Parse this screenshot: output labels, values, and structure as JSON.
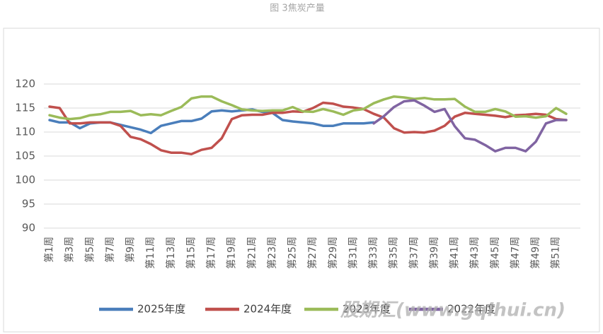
{
  "chart_data": {
    "type": "line",
    "title": "图 3焦炭产量",
    "watermark": "股期汇(www.gqihui.cn)",
    "categories": [
      "第1周",
      null,
      "第3周",
      null,
      "第5周",
      null,
      "第7周",
      null,
      "第9周",
      null,
      "第11周",
      null,
      "第13周",
      null,
      "第15周",
      null,
      "第17周",
      null,
      "第19周",
      null,
      "第21周",
      null,
      "第23周",
      null,
      "第25周",
      null,
      "第27周",
      null,
      "第29周",
      null,
      "第31周",
      null,
      "第33周",
      null,
      "第35周",
      null,
      "第37周",
      null,
      "第39周",
      null,
      "第41周",
      null,
      "第43周",
      null,
      "第45周",
      null,
      "第47周",
      null,
      "第49周",
      null,
      "第51周",
      null
    ],
    "ylim": [
      90,
      120
    ],
    "yticks": [
      90,
      95,
      100,
      105,
      110,
      115,
      120
    ],
    "grid": true,
    "series": [
      {
        "name": "2025年度",
        "color": "#4a7ebb",
        "values": [
          112.5,
          112.0,
          112.0,
          110.8,
          111.8,
          112.0,
          112.0,
          111.5,
          111.0,
          110.5,
          109.8,
          111.3,
          111.8,
          112.3,
          112.3,
          112.8,
          114.3,
          114.5,
          114.3,
          114.5,
          114.7,
          114.2,
          114.0,
          112.5,
          112.2,
          112.0,
          111.8,
          111.3,
          111.3,
          111.8,
          111.8,
          111.8,
          112.0,
          null,
          null,
          null,
          null,
          null,
          null,
          null,
          null,
          null,
          null,
          null,
          null,
          null,
          null,
          null,
          null,
          null,
          null,
          null
        ]
      },
      {
        "name": "2024年度",
        "color": "#c0504d",
        "values": [
          115.3,
          115.0,
          111.8,
          111.8,
          112.0,
          112.0,
          112.0,
          111.3,
          109.0,
          108.5,
          107.5,
          106.2,
          105.7,
          105.7,
          105.4,
          106.3,
          106.7,
          108.7,
          112.7,
          113.5,
          113.6,
          113.6,
          114.0,
          114.0,
          114.3,
          114.2,
          115.0,
          116.1,
          115.9,
          115.3,
          115.1,
          114.8,
          113.8,
          113.0,
          110.8,
          109.9,
          110.0,
          109.9,
          110.3,
          111.3,
          113.2,
          114.0,
          113.8,
          113.6,
          113.4,
          113.1,
          113.5,
          113.6,
          113.8,
          113.6,
          112.7,
          112.5
        ]
      },
      {
        "name": "2023年度",
        "color": "#9bbb59",
        "values": [
          113.5,
          113.0,
          112.7,
          112.9,
          113.5,
          113.7,
          114.2,
          114.2,
          114.4,
          113.5,
          113.7,
          113.5,
          114.4,
          115.2,
          117.0,
          117.4,
          117.4,
          116.4,
          115.6,
          114.7,
          114.5,
          114.4,
          114.5,
          114.5,
          115.2,
          114.3,
          114.2,
          114.8,
          114.3,
          113.6,
          114.5,
          114.8,
          116.0,
          116.8,
          117.4,
          117.2,
          116.9,
          117.1,
          116.8,
          116.8,
          116.9,
          115.3,
          114.2,
          114.2,
          114.8,
          114.3,
          113.2,
          113.3,
          113.0,
          113.3,
          115.0,
          113.8
        ]
      },
      {
        "name": "2022年度",
        "color": "#8064a2",
        "values": [
          null,
          null,
          null,
          null,
          null,
          null,
          null,
          null,
          null,
          null,
          null,
          null,
          null,
          null,
          null,
          null,
          null,
          null,
          null,
          null,
          null,
          null,
          null,
          null,
          null,
          null,
          null,
          null,
          null,
          null,
          null,
          null,
          111.8,
          113.3,
          115.2,
          116.4,
          116.6,
          115.5,
          114.2,
          114.8,
          111.2,
          108.7,
          108.4,
          107.3,
          106.0,
          106.7,
          106.7,
          106.0,
          108.0,
          111.8,
          112.5,
          112.5
        ]
      }
    ]
  }
}
